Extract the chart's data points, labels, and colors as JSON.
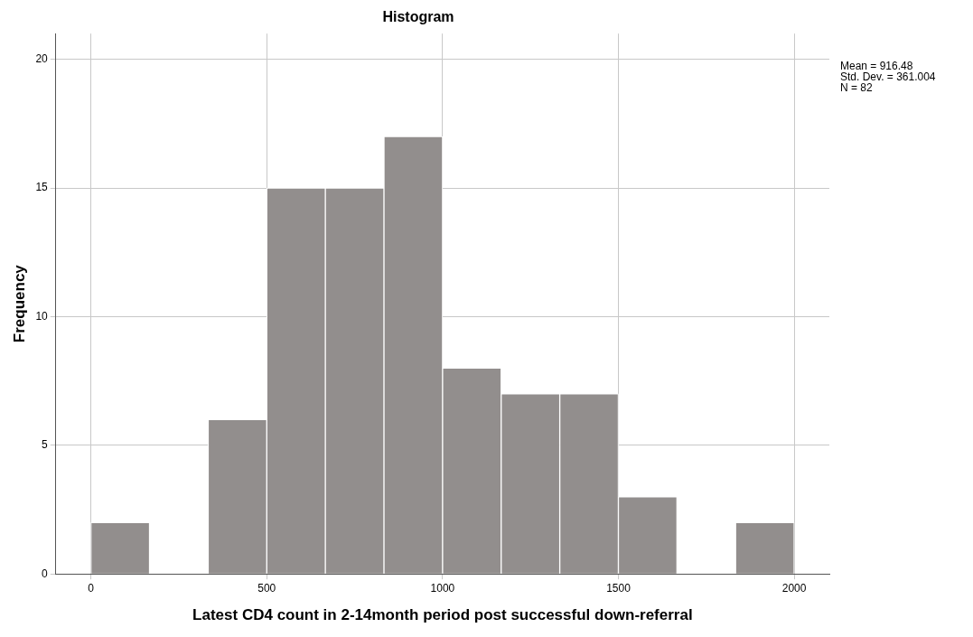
{
  "chart_data": {
    "type": "histogram",
    "title": "Histogram",
    "xlabel": "Latest CD4 count in 2-14month period post successful down-referral",
    "ylabel": "Frequency",
    "bins": [
      0,
      166.67,
      333.33,
      500,
      666.67,
      833.33,
      1000,
      1166.67,
      1333.33,
      1500,
      1666.67,
      1833.33,
      2000
    ],
    "values": [
      2,
      0,
      6,
      15,
      15,
      17,
      8,
      7,
      7,
      3,
      0,
      2
    ],
    "color": "#928e8d",
    "xlim": [
      -100,
      2100
    ],
    "xticks": [
      0,
      500,
      1000,
      1500,
      2000
    ],
    "ylim": [
      0,
      21
    ],
    "yticks": [
      0,
      5,
      10,
      15,
      20
    ],
    "grid": true,
    "annotations": [
      "Mean = 916.48",
      "Std. Dev. = 361.004",
      "N = 82"
    ]
  }
}
